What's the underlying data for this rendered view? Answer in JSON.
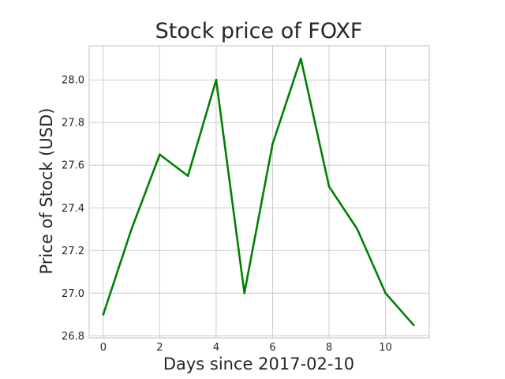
{
  "chart_data": {
    "type": "line",
    "title": "Stock price of FOXF",
    "xlabel": "Days since 2017-02-10",
    "ylabel": "Price of Stock (USD)",
    "x": [
      0,
      1,
      2,
      3,
      4,
      5,
      6,
      7,
      8,
      9,
      10,
      11
    ],
    "series": [
      {
        "values": [
          26.9,
          27.3,
          27.65,
          27.55,
          28.0,
          27.0,
          27.7,
          28.1,
          27.5,
          27.3,
          27.0,
          26.85
        ],
        "color": "#008000"
      }
    ],
    "xlim": [
      -0.5,
      11.55
    ],
    "ylim": [
      26.79,
      28.16
    ],
    "xticks": [
      0,
      2,
      4,
      6,
      8,
      10
    ],
    "xtick_labels": [
      "0",
      "2",
      "4",
      "6",
      "8",
      "10"
    ],
    "yticks": [
      26.8,
      27.0,
      27.2,
      27.4,
      27.6,
      27.8,
      28.0
    ],
    "ytick_labels": [
      "26.8",
      "27.0",
      "27.2",
      "27.4",
      "27.6",
      "27.8",
      "28.0"
    ],
    "grid": true,
    "legend": false
  }
}
